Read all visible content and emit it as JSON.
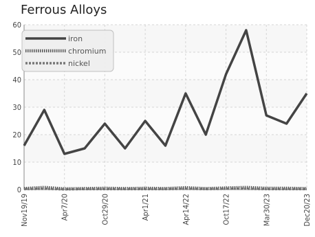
{
  "chart_data": {
    "type": "line",
    "title": "Ferrous Alloys",
    "xlabel": "",
    "ylabel": "",
    "ylim": [
      0,
      60
    ],
    "yticks": [
      0,
      10,
      20,
      30,
      40,
      50,
      60
    ],
    "x": [
      "Nov19/19",
      "",
      "Apr7/20",
      "",
      "Oct29/20",
      "",
      "Apr1/21",
      "",
      "Apr14/22",
      "",
      "Oct17/22",
      "",
      "Mar30/23",
      "",
      "Dec20/23"
    ],
    "xtick_labels": [
      "Nov19/19",
      "Apr7/20",
      "Oct29/20",
      "Apr1/21",
      "Apr14/22",
      "Oct17/22",
      "Mar30/23",
      "Dec20/23"
    ],
    "grid": true,
    "legend_position": "top-left",
    "series": [
      {
        "name": "iron",
        "color": "#444444",
        "style": "solid",
        "values": [
          16,
          29,
          13,
          15,
          24,
          15,
          25,
          16,
          35,
          20,
          42,
          58,
          27,
          24,
          35
        ]
      },
      {
        "name": "chromium",
        "color": "#555555",
        "style": "dotted",
        "values": [
          0.4,
          0.8,
          0.3,
          0.4,
          0.5,
          0.4,
          0.5,
          0.4,
          0.7,
          0.4,
          0.6,
          0.8,
          0.5,
          0.5,
          0.4
        ]
      },
      {
        "name": "nickel",
        "color": "#777777",
        "style": "dashed",
        "values": [
          0.2,
          0.3,
          0.1,
          0.2,
          0.2,
          0.2,
          0.2,
          0.2,
          0.3,
          0.2,
          0.3,
          0.3,
          0.2,
          0.2,
          0.2
        ]
      }
    ]
  }
}
